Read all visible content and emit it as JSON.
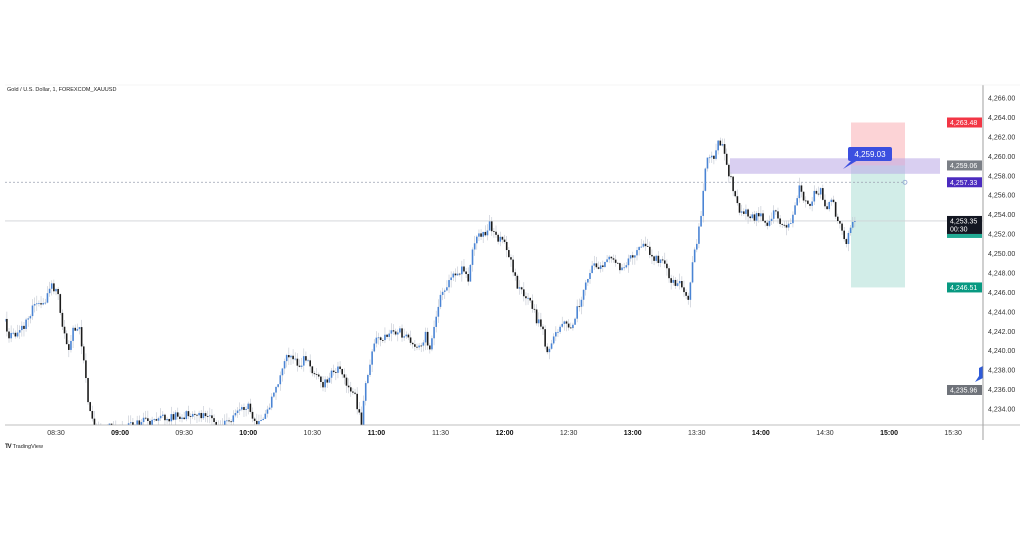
{
  "header": {
    "title": "Gold / U.S. Dollar, 1, FOREXCOM_XAUUSD"
  },
  "footer": {
    "brand": "TradingView"
  },
  "colors": {
    "up": "#4a84d4",
    "down": "#1b1b1b",
    "wick": "#c0c6d0",
    "stop": "#f23645",
    "target": "#089981",
    "zone": "#b9a7e6",
    "callout": "#3b4fe0",
    "alert_line": "#7e57c2"
  },
  "chart_data": {
    "type": "candlestick",
    "interval": "1",
    "title": "Gold / U.S. Dollar, 1, FOREXCOM_XAUUSD",
    "ylim": [
      4232.4,
      4267.3
    ],
    "y_ticks": [
      "4,234.00",
      "4,236.00",
      "4,238.00",
      "4,240.00",
      "4,242.00",
      "4,244.00",
      "4,246.00",
      "4,248.00",
      "4,250.00",
      "4,252.00",
      "4,254.00",
      "4,256.00",
      "4,258.00",
      "4,260.00",
      "4,262.00",
      "4,264.00",
      "4,266.00"
    ],
    "x_ticks": [
      {
        "label": "08:30",
        "bold": false
      },
      {
        "label": "09:00",
        "bold": true
      },
      {
        "label": "09:30",
        "bold": false
      },
      {
        "label": "10:00",
        "bold": true
      },
      {
        "label": "10:30",
        "bold": false
      },
      {
        "label": "11:00",
        "bold": true
      },
      {
        "label": "11:30",
        "bold": false
      },
      {
        "label": "12:00",
        "bold": true
      },
      {
        "label": "12:30",
        "bold": false
      },
      {
        "label": "13:00",
        "bold": true
      },
      {
        "label": "13:30",
        "bold": false
      },
      {
        "label": "14:00",
        "bold": true
      },
      {
        "label": "14:30",
        "bold": false
      },
      {
        "label": "15:00",
        "bold": true
      },
      {
        "label": "15:30",
        "bold": false
      }
    ],
    "approx_close_path": {
      "time": [
        "08:06",
        "08:08",
        "08:15",
        "08:20",
        "08:25",
        "08:28",
        "08:31",
        "08:33",
        "08:36",
        "08:38",
        "08:41",
        "08:43",
        "08:45",
        "08:48",
        "09:31",
        "09:36",
        "09:43",
        "09:46",
        "10:00",
        "10:03",
        "10:08",
        "10:12",
        "10:15",
        "10:18",
        "10:20",
        "10:24",
        "10:27",
        "10:30",
        "10:35",
        "10:40",
        "10:43",
        "10:47",
        "10:50",
        "10:53",
        "10:55",
        "10:58",
        "11:00",
        "11:05",
        "11:10",
        "11:15",
        "11:18",
        "11:20",
        "11:23",
        "11:25",
        "11:27",
        "11:30",
        "11:35",
        "11:40",
        "11:43",
        "11:46",
        "11:50",
        "11:53",
        "11:56",
        "12:00",
        "12:03",
        "12:06",
        "12:09",
        "12:12",
        "12:15",
        "12:18",
        "12:20",
        "12:22",
        "12:25",
        "12:28",
        "12:31",
        "12:34",
        "12:37",
        "12:40",
        "12:44",
        "12:48",
        "12:52",
        "12:55",
        "12:58",
        "13:02",
        "13:06",
        "13:09",
        "13:12",
        "13:15",
        "13:18",
        "13:21",
        "13:24",
        "13:26",
        "13:28",
        "13:30",
        "13:32",
        "13:34",
        "13:36",
        "13:38",
        "13:40",
        "13:42",
        "13:44",
        "13:46",
        "13:48",
        "13:50",
        "13:53",
        "13:56",
        "14:00",
        "14:03",
        "14:06",
        "14:09",
        "14:12",
        "14:15",
        "14:18",
        "14:20",
        "14:23",
        "14:25",
        "14:28",
        "14:31",
        "14:33",
        "14:36",
        "14:38",
        "14:40",
        "14:42",
        "14:44"
      ],
      "close": [
        4243.0,
        4241.3,
        4242.3,
        4244.7,
        4245.2,
        4246.5,
        4245.7,
        4242.1,
        4240.1,
        4242.6,
        4242.1,
        4239.0,
        4234.9,
        4231.8,
        4233.4,
        4233.4,
        4233.4,
        4231.8,
        4234.4,
        4232.4,
        4233.4,
        4235.4,
        4237.5,
        4239.6,
        4239.9,
        4238.5,
        4239.3,
        4237.5,
        4236.5,
        4238.0,
        4238.2,
        4236.0,
        4235.4,
        4232.4,
        4236.5,
        4239.6,
        4241.1,
        4241.6,
        4242.1,
        4241.1,
        4240.6,
        4240.1,
        4241.6,
        4240.1,
        4242.6,
        4245.7,
        4247.3,
        4248.3,
        4247.3,
        4251.4,
        4251.9,
        4252.9,
        4251.9,
        4250.9,
        4249.1,
        4246.8,
        4245.7,
        4245.2,
        4243.2,
        4242.1,
        4239.6,
        4240.6,
        4242.1,
        4243.2,
        4242.1,
        4244.2,
        4246.2,
        4248.3,
        4248.8,
        4249.3,
        4249.1,
        4248.5,
        4249.5,
        4250.4,
        4251.2,
        4249.8,
        4249.1,
        4248.8,
        4247.3,
        4247.0,
        4246.2,
        4245.2,
        4249.1,
        4250.9,
        4254.0,
        4259.1,
        4260.1,
        4259.8,
        4261.2,
        4261.7,
        4259.1,
        4257.6,
        4256.0,
        4254.0,
        4254.5,
        4253.7,
        4254.0,
        4253.0,
        4254.2,
        4253.4,
        4252.4,
        4254.0,
        4257.0,
        4255.5,
        4255.0,
        4256.0,
        4256.7,
        4254.5,
        4255.7,
        4253.4,
        4252.4,
        4251.2,
        4253.0,
        4253.7
      ]
    },
    "position": {
      "stop": 4263.48,
      "entry": 4259.06,
      "target": 4246.51,
      "start_time": "14:44",
      "end_time": "15:01"
    },
    "zone": {
      "low": 4258.2,
      "high": 4259.8,
      "start_time": "13:44",
      "end_time": "15:18"
    },
    "callout": "4,259.03",
    "alert_level": 4257.33,
    "current_price": 4253.35,
    "countdown": "00:30",
    "price_labels": [
      {
        "text": "4,263.48",
        "color": "#f23645",
        "price": 4263.48
      },
      {
        "text": "4,259.06",
        "color": "#7b7f86",
        "price": 4259.06
      },
      {
        "text": "4,257.33",
        "color": "#4b2bbf",
        "price": 4257.33
      },
      {
        "text": "4,246.51",
        "color": "#089981",
        "price": 4246.51
      },
      {
        "text": "4,235.96",
        "color": "#6f737a",
        "price": 4235.96
      }
    ],
    "current_label": "4,253.35"
  }
}
